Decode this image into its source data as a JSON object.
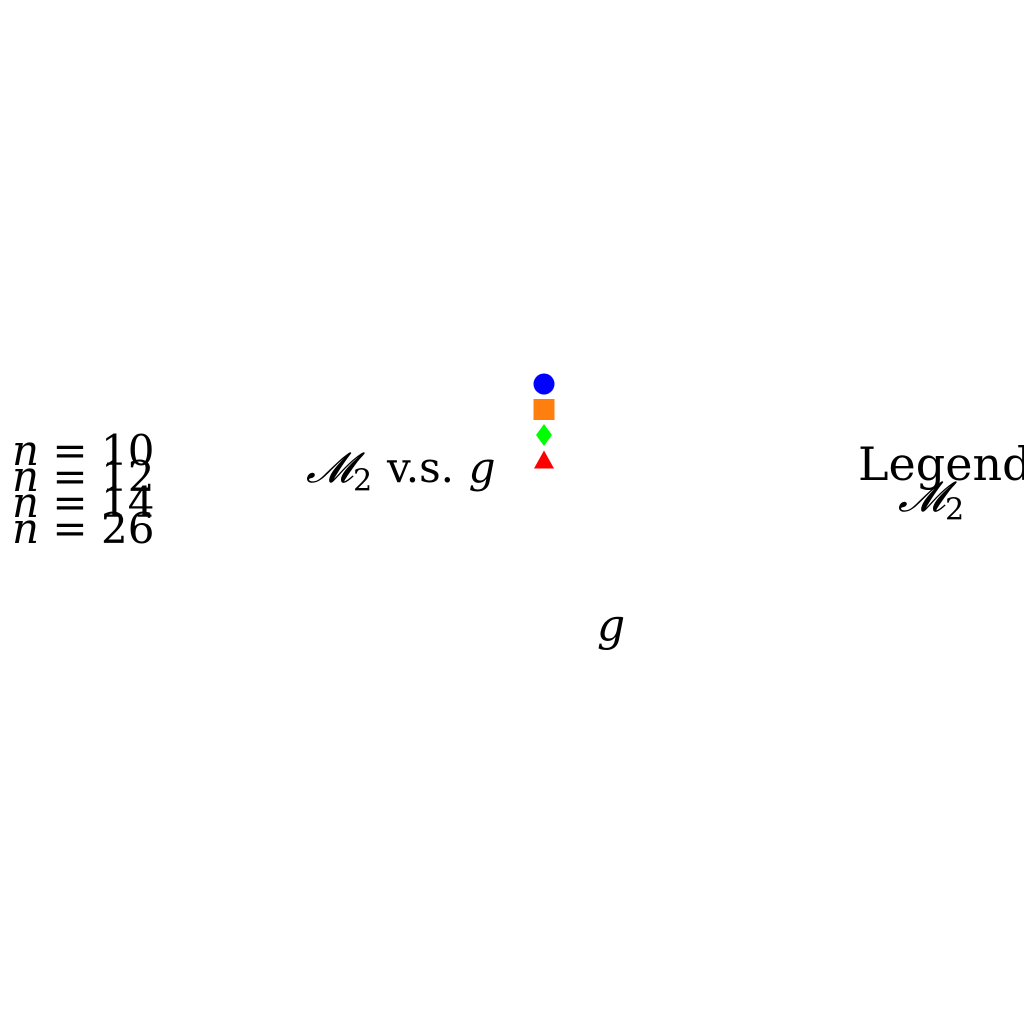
{
  "chart_data": {
    "type": "scatter",
    "title": {
      "symbol": "𝓜",
      "subscript": "2",
      "connector": "v.s.",
      "variable": "g"
    },
    "xlabel": "g",
    "ylabel": {
      "symbol": "𝓜",
      "subscript": "2"
    },
    "legend_title": "Legend",
    "legend_placement": "right",
    "grid": false,
    "series": [
      {
        "name": "n = 10",
        "var": "n",
        "op": "=",
        "num": "10",
        "color": "#0000ff",
        "marker": "circle",
        "values": []
      },
      {
        "name": "n = 12",
        "var": "n",
        "op": "=",
        "num": "12",
        "color": "#ff7f0e",
        "marker": "square",
        "values": []
      },
      {
        "name": "n = 14",
        "var": "n",
        "op": "=",
        "num": "14",
        "color": "#00ff00",
        "marker": "diamond",
        "values": []
      },
      {
        "name": "n = 26",
        "var": "n",
        "op": "=",
        "num": "26",
        "color": "#ff0000",
        "marker": "triangle-up",
        "values": []
      }
    ]
  }
}
